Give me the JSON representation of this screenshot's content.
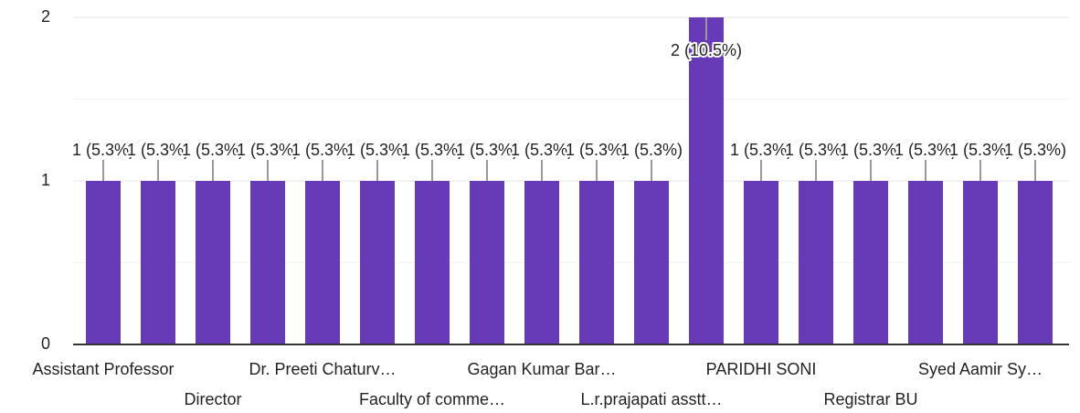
{
  "chart_data": {
    "type": "bar",
    "categories": [
      "Assistant Professor",
      null,
      "Director",
      null,
      "Dr. Preeti Chaturv…",
      null,
      "Faculty of comme…",
      null,
      "Gagan Kumar Bar…",
      null,
      "L.r.prajapati asstt…",
      null,
      "PARIDHI SONI",
      null,
      "Registrar BU",
      null,
      "Syed Aamir Sy…",
      null
    ],
    "values": [
      1,
      1,
      1,
      1,
      1,
      1,
      1,
      1,
      1,
      1,
      1,
      2,
      1,
      1,
      1,
      1,
      1,
      1
    ],
    "value_labels": [
      "1 (5.3%)",
      "1 (5.3%)",
      "1 (5.3%)",
      "1 (5.3%)",
      "1 (5.3%)",
      "1 (5.3%)",
      "1 (5.3%)",
      "1 (5.3%)",
      "1 (5.3%)",
      "1 (5.3%)",
      "1 (5.3%)",
      "2 (10.5%)",
      "1 (5.3%)",
      "1 (5.3%)",
      "1 (5.3%)",
      "1 (5.3%)",
      "1 (5.3%)",
      "1 (5.3%)"
    ],
    "color": "#673ab7",
    "ylim": [
      0,
      2
    ],
    "yticks": [
      0,
      1,
      2
    ],
    "minor_yticks": [
      0.5,
      1.5
    ],
    "grid": true
  }
}
